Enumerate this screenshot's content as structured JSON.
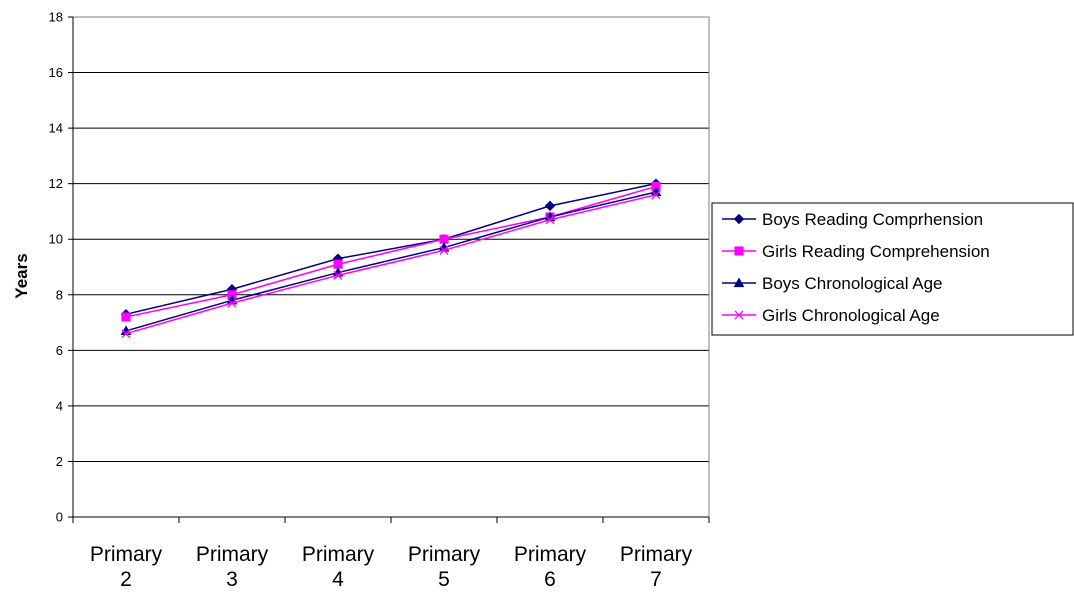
{
  "chart_data": {
    "type": "line",
    "title": "",
    "xlabel": "",
    "ylabel": "Years",
    "ylim": [
      0,
      18
    ],
    "yticks": [
      0,
      2,
      4,
      6,
      8,
      10,
      12,
      14,
      16,
      18
    ],
    "grid": true,
    "legend_position": "right",
    "categories": [
      [
        "Primary",
        "2"
      ],
      [
        "Primary",
        "3"
      ],
      [
        "Primary",
        "4"
      ],
      [
        "Primary",
        "5"
      ],
      [
        "Primary",
        "6"
      ],
      [
        "Primary",
        "7"
      ]
    ],
    "series": [
      {
        "name": "Boys Reading Comprhension",
        "color": "#000080",
        "marker": "diamond",
        "values": [
          7.3,
          8.2,
          9.3,
          10.0,
          11.2,
          12.0
        ]
      },
      {
        "name": "Girls Reading Comprehension",
        "color": "#FF00FF",
        "marker": "square",
        "values": [
          7.2,
          8.0,
          9.1,
          10.0,
          10.8,
          11.9
        ]
      },
      {
        "name": "Boys Chronological Age",
        "color": "#000080",
        "marker": "triangle",
        "values": [
          6.7,
          7.8,
          8.8,
          9.7,
          10.8,
          11.7
        ]
      },
      {
        "name": "Girls Chronological Age",
        "color": "#FF00FF",
        "marker": "x",
        "values": [
          6.6,
          7.7,
          8.7,
          9.6,
          10.7,
          11.6
        ]
      }
    ]
  }
}
